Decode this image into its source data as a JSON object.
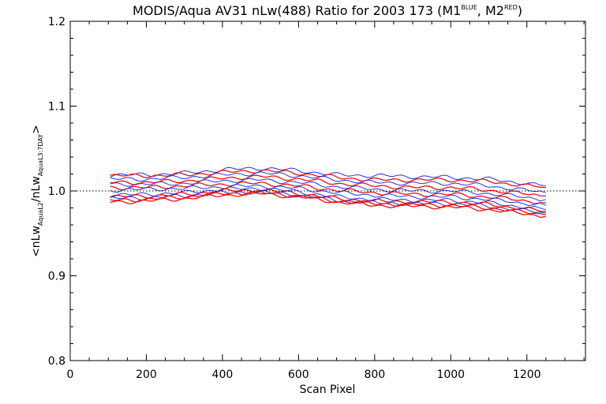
{
  "chart_data": {
    "type": "line",
    "title": {
      "main": "MODIS/Aqua AV31 nLw(488) Ratio for 2003 173 (M1",
      "m1_sup": "BLUE",
      "mid": ", M2",
      "m2_sup": "RED",
      "end": ")"
    },
    "xlabel": "Scan Pixel",
    "ylabel": {
      "a": "<nLw",
      "a_sub": "AquaL2",
      "b": "/nLw",
      "b_sub": "AquaL3:7DAY",
      "c": ">"
    },
    "xlim": [
      0,
      1354
    ],
    "ylim": [
      0.8,
      1.2
    ],
    "xticks": [
      0,
      200,
      400,
      600,
      800,
      1000,
      1200
    ],
    "xtick_labels": [
      "0",
      "200",
      "400",
      "600",
      "800",
      "1000",
      "1200"
    ],
    "yticks": [
      0.8,
      0.9,
      1.0,
      1.1,
      1.2
    ],
    "ytick_labels": [
      "0.8",
      "0.9",
      "1.0",
      "1.1",
      "1.2"
    ],
    "reference_line": 1.0,
    "grid": false,
    "colors": {
      "blue": "#2233dd",
      "red": "#ee1111",
      "ref": "#000000"
    },
    "x": [
      105,
      200,
      300,
      400,
      500,
      600,
      700,
      800,
      900,
      1000,
      1100,
      1250
    ],
    "series": [
      {
        "color": "blue",
        "values": [
          1.019,
          1.019,
          1.021,
          1.025,
          1.027,
          1.024,
          1.019,
          1.018,
          1.017,
          1.016,
          1.014,
          1.006
        ]
      },
      {
        "color": "red",
        "values": [
          1.018,
          1.018,
          1.019,
          1.022,
          1.024,
          1.021,
          1.016,
          1.013,
          1.013,
          1.013,
          1.011,
          1.004
        ]
      },
      {
        "color": "blue",
        "values": [
          1.014,
          1.014,
          1.016,
          1.019,
          1.021,
          1.018,
          1.013,
          1.01,
          1.009,
          1.009,
          1.006,
          0.998
        ]
      },
      {
        "color": "red",
        "values": [
          1.01,
          1.01,
          1.012,
          1.015,
          1.017,
          1.014,
          1.009,
          1.006,
          1.004,
          1.004,
          1.001,
          0.994
        ]
      },
      {
        "color": "blue",
        "values": [
          1.008,
          1.008,
          1.009,
          1.012,
          1.013,
          1.01,
          1.005,
          1.002,
          1.0,
          1.0,
          0.997,
          0.99
        ]
      },
      {
        "color": "red",
        "values": [
          1.004,
          1.004,
          1.006,
          1.008,
          1.009,
          1.006,
          1.001,
          0.998,
          0.996,
          0.996,
          0.993,
          0.986
        ]
      },
      {
        "color": "blue",
        "values": [
          1.001,
          1.002,
          1.003,
          1.005,
          1.006,
          1.003,
          0.998,
          0.995,
          0.993,
          0.993,
          0.99,
          0.983
        ]
      },
      {
        "color": "blue",
        "values": [
          0.995,
          0.996,
          0.998,
          1.002,
          1.003,
          0.999,
          0.993,
          0.99,
          0.989,
          0.989,
          0.986,
          0.978
        ]
      },
      {
        "color": "red",
        "values": [
          0.993,
          0.994,
          0.996,
          1.0,
          1.001,
          0.997,
          0.991,
          0.988,
          0.987,
          0.987,
          0.984,
          0.976
        ]
      },
      {
        "color": "blue",
        "values": [
          0.991,
          0.992,
          0.994,
          0.998,
          0.999,
          0.995,
          0.989,
          0.986,
          0.985,
          0.985,
          0.982,
          0.974
        ]
      },
      {
        "color": "red",
        "values": [
          0.989,
          0.99,
          0.993,
          0.997,
          0.998,
          0.994,
          0.988,
          0.985,
          0.984,
          0.983,
          0.98,
          0.972
        ]
      },
      {
        "color": "red",
        "values": [
          0.987,
          0.988,
          0.991,
          0.995,
          0.997,
          0.993,
          0.987,
          0.983,
          0.982,
          0.981,
          0.978,
          0.97
        ]
      }
    ]
  }
}
